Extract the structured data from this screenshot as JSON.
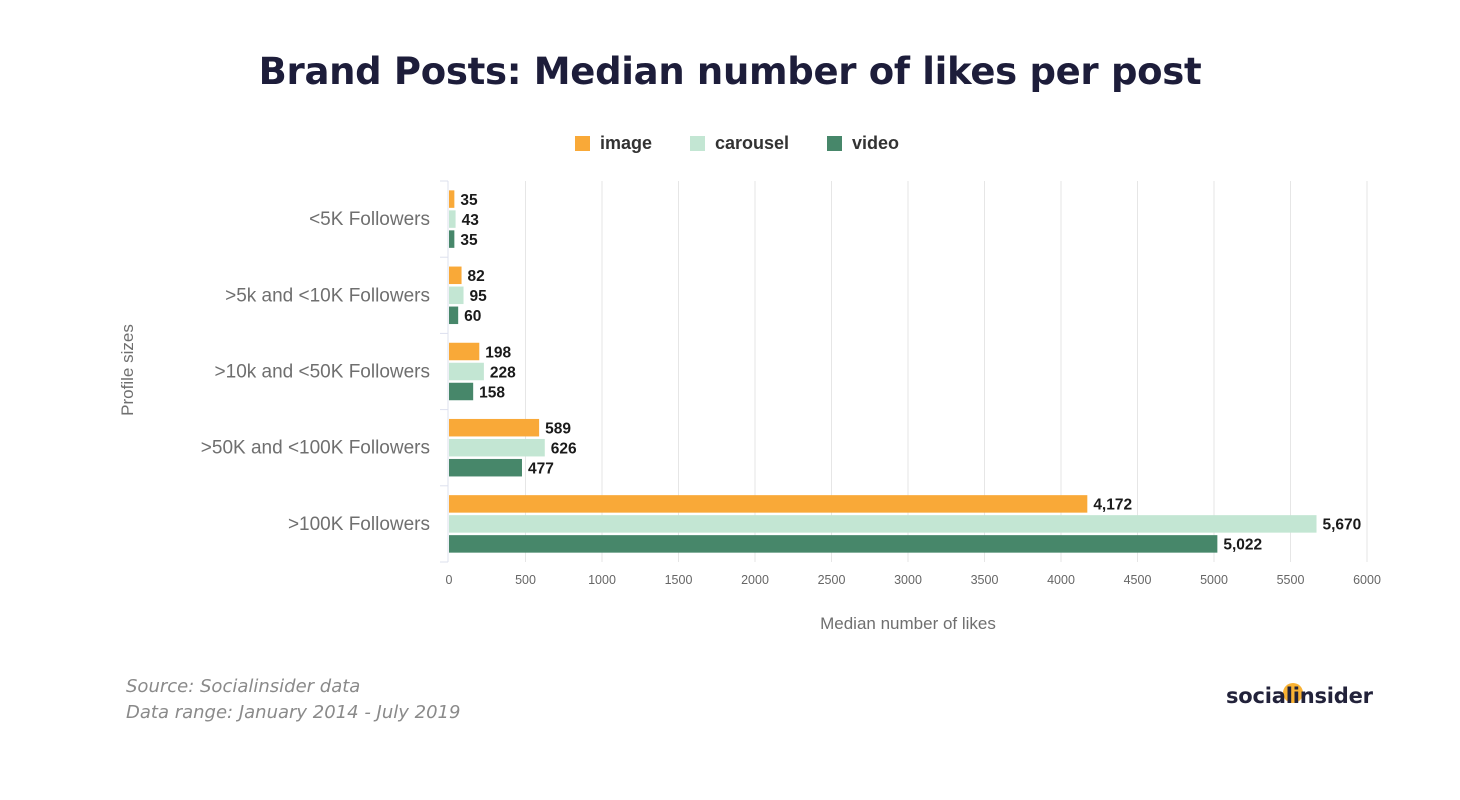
{
  "chart_data": {
    "type": "bar",
    "orientation": "horizontal",
    "title": "Brand Posts: Median number of likes per post",
    "xlabel": "Median number of likes",
    "ylabel": "Profile sizes",
    "xlim": [
      0,
      6000
    ],
    "x_ticks": [
      0,
      500,
      1000,
      1500,
      2000,
      2500,
      3000,
      3500,
      4000,
      4500,
      5000,
      5500,
      6000
    ],
    "grid": "vertical",
    "legend_position": "top-center",
    "categories": [
      "<5K Followers",
      ">5k and <10K Followers",
      ">10k and <50K Followers",
      ">50K and <100K Followers",
      ">100K Followers"
    ],
    "series": [
      {
        "name": "image",
        "color": "#f9a938",
        "values": [
          35,
          82,
          198,
          589,
          4172
        ],
        "labels": [
          "35",
          "82",
          "198",
          "589",
          "4,172"
        ]
      },
      {
        "name": "carousel",
        "color": "#c3e6d3",
        "values": [
          43,
          95,
          228,
          626,
          5670
        ],
        "labels": [
          "43",
          "95",
          "228",
          "626",
          "5,670"
        ]
      },
      {
        "name": "video",
        "color": "#47876a",
        "values": [
          35,
          60,
          158,
          477,
          5022
        ],
        "labels": [
          "35",
          "60",
          "158",
          "477",
          "5,022"
        ]
      }
    ]
  },
  "footer": {
    "source": "Source: Socialinsider data",
    "range": "Data range: January 2014 - July 2019"
  },
  "logo": {
    "text": "socialinsider",
    "dot_color": "#f9b233"
  }
}
